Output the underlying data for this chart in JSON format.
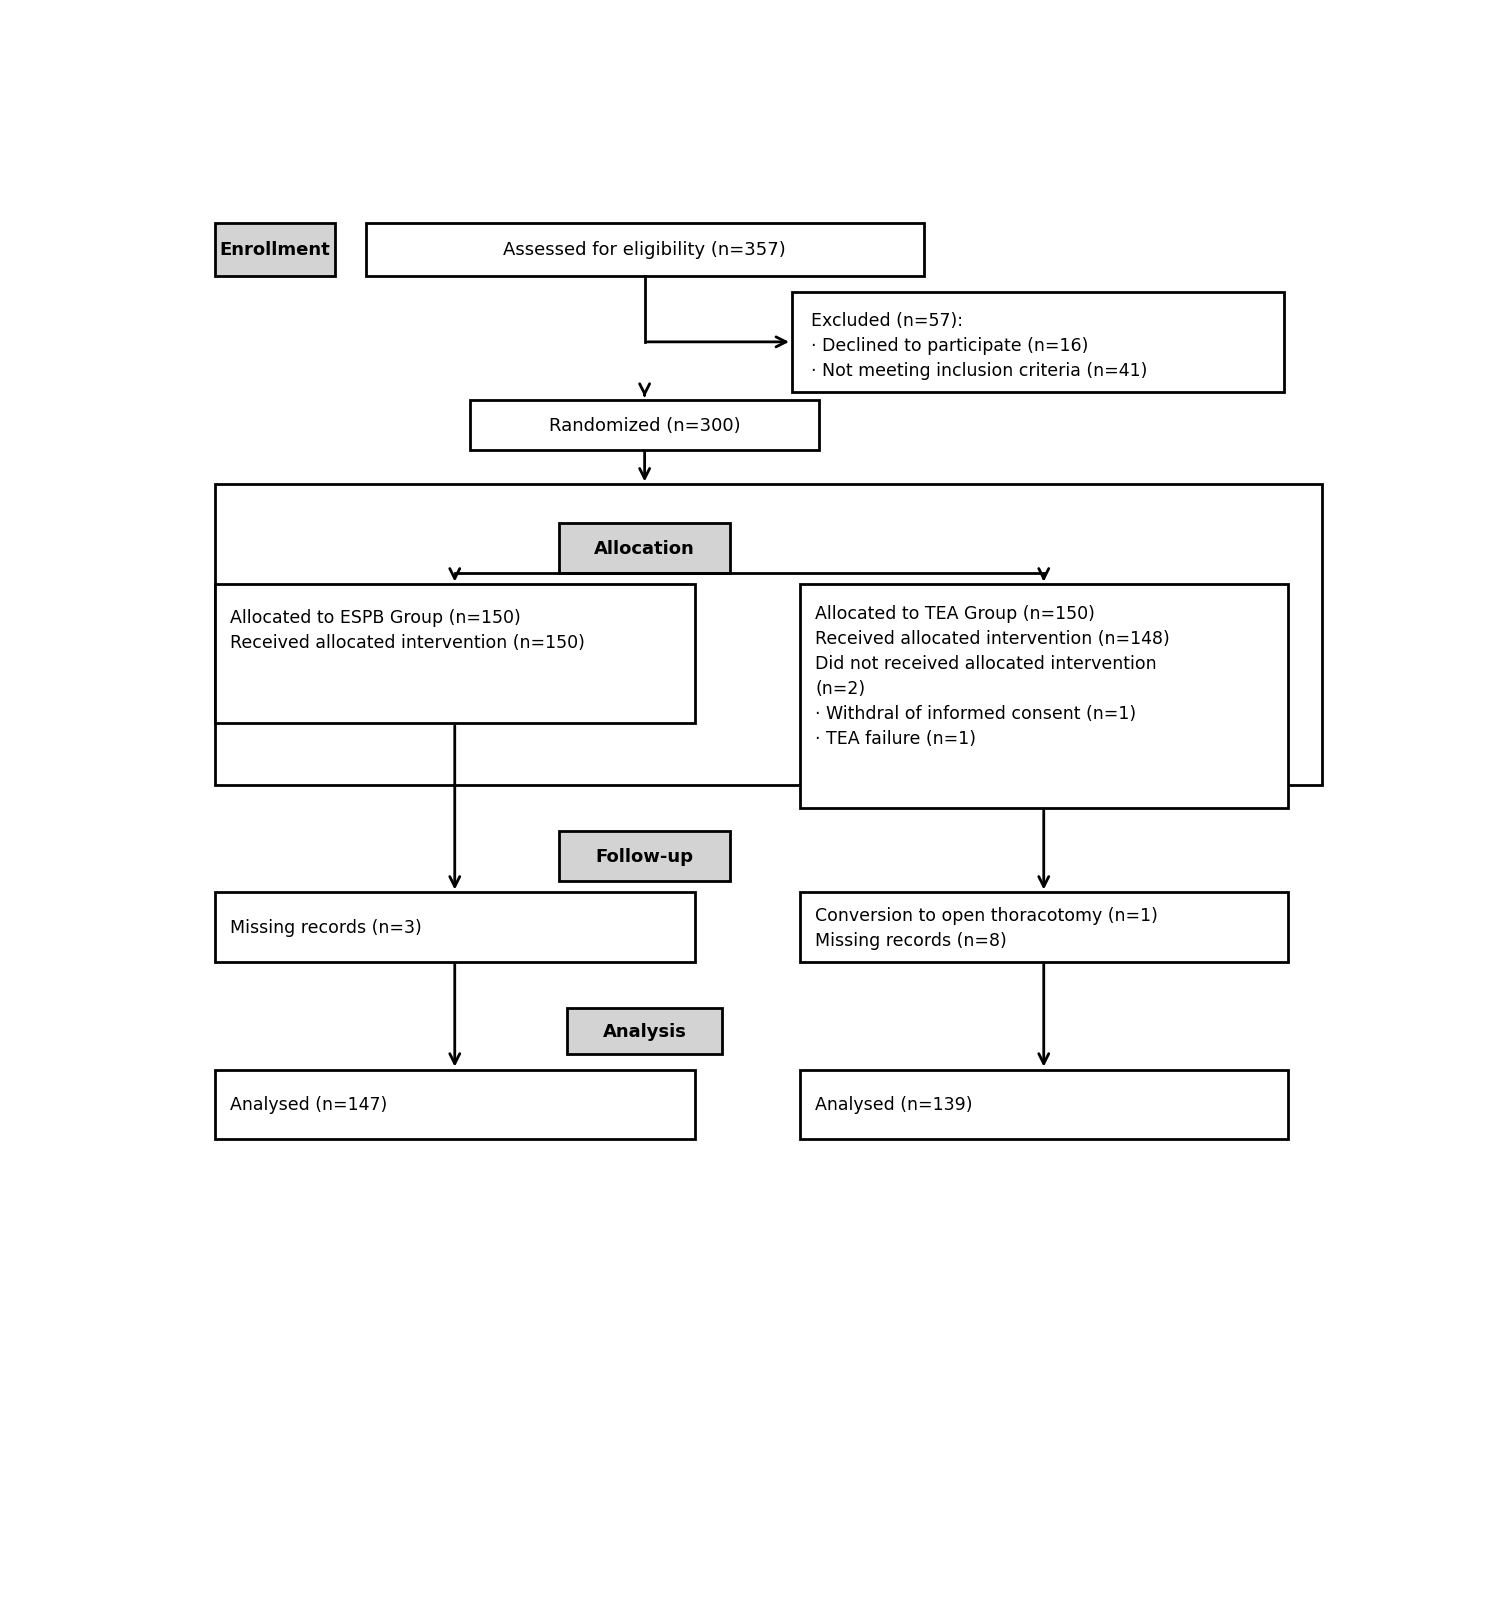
{
  "bg_color": "#ffffff",
  "lw": 2.0,
  "gray_fill": "#d3d3d3",
  "white_fill": "#ffffff",
  "black": "#000000",
  "font_size": 12.5,
  "bold_font_size": 13,
  "arrow_lw": 2.0,
  "enrollment_label": "Enrollment",
  "eligibility_text": "Assessed for eligibility (n=357)",
  "excluded_text": "Excluded (n=57):\n· Declined to participate (n=16)\n· Not meeting inclusion criteria (n=41)",
  "randomized_text": "Randomized (n=300)",
  "allocation_text": "Allocation",
  "espb_text": "Allocated to ESPB Group (n=150)\nReceived allocated intervention (n=150)",
  "tea_text": "Allocated to TEA Group (n=150)\nReceived allocated intervention (n=148)\nDid not received allocated intervention\n(n=2)\n· Withdral of informed consent (n=1)\n· TEA failure (n=1)",
  "followup_text": "Follow-up",
  "espb_missing_text": "Missing records (n=3)",
  "tea_missing_text": "Conversion to open thoracotomy (n=1)\nMissing records (n=8)",
  "analysis_text": "Analysis",
  "espb_analysed_text": "Analysed (n=147)",
  "tea_analysed_text": "Analysed (n=139)"
}
